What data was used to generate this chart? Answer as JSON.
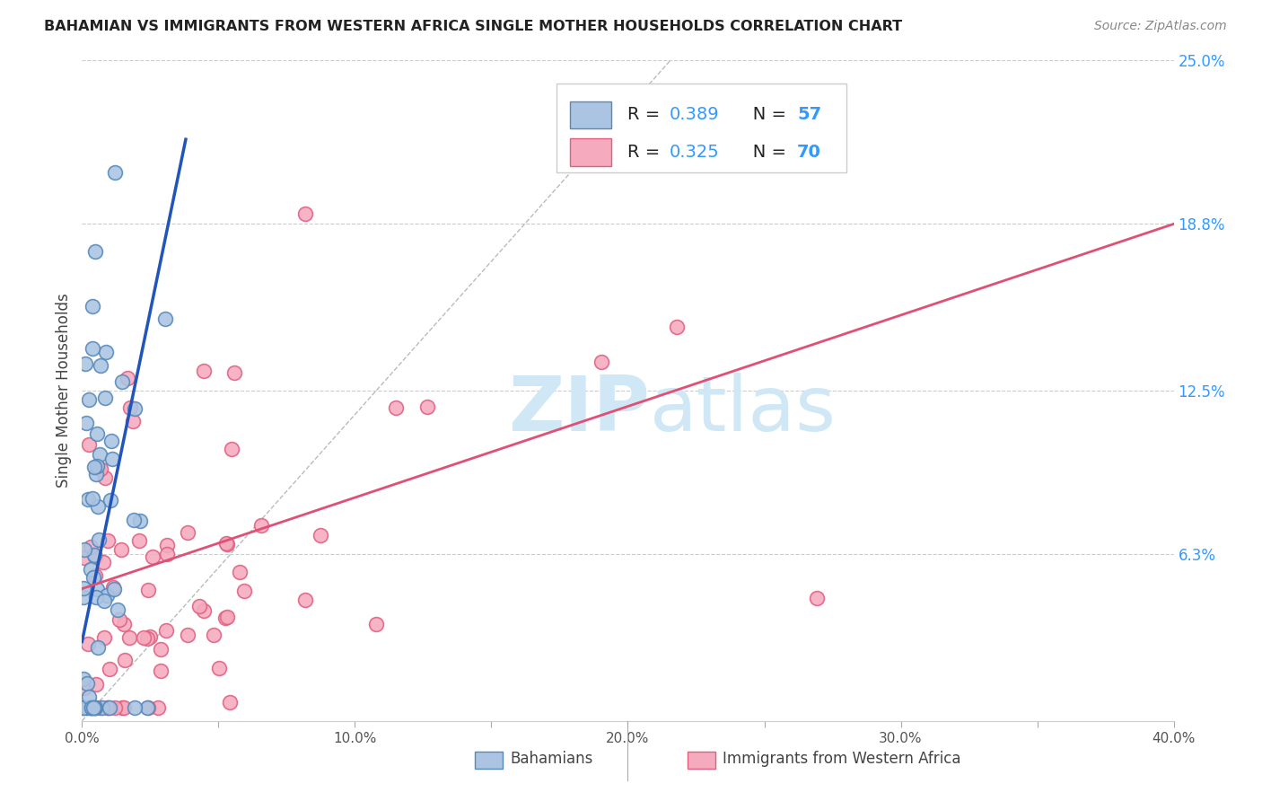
{
  "title": "BAHAMIAN VS IMMIGRANTS FROM WESTERN AFRICA SINGLE MOTHER HOUSEHOLDS CORRELATION CHART",
  "source": "Source: ZipAtlas.com",
  "ylabel": "Single Mother Households",
  "xlim": [
    0.0,
    0.4
  ],
  "ylim": [
    0.0,
    0.25
  ],
  "ytick_labels_right": [
    "25.0%",
    "18.8%",
    "12.5%",
    "6.3%"
  ],
  "ytick_positions_right": [
    0.25,
    0.188,
    0.125,
    0.063
  ],
  "bahamian_R": 0.389,
  "bahamian_N": 57,
  "western_africa_R": 0.325,
  "western_africa_N": 70,
  "bahamian_color": "#aac4e2",
  "bahamian_edge_color": "#5588bb",
  "western_africa_color": "#f5aabe",
  "western_africa_edge_color": "#e06080",
  "bahamian_line_color": "#2255bb",
  "western_africa_line_color": "#e05075",
  "watermark_color": "#d0e8f5",
  "bah_line_x0": 0.0,
  "bah_line_y0": 0.03,
  "bah_line_x1": 0.038,
  "bah_line_y1": 0.22,
  "waf_line_x0": 0.0,
  "waf_line_y0": 0.05,
  "waf_line_x1": 0.4,
  "waf_line_y1": 0.188,
  "dash_line_x0": 0.0,
  "dash_line_y0": 0.0,
  "dash_line_x1": 0.22,
  "dash_line_y1": 0.255
}
